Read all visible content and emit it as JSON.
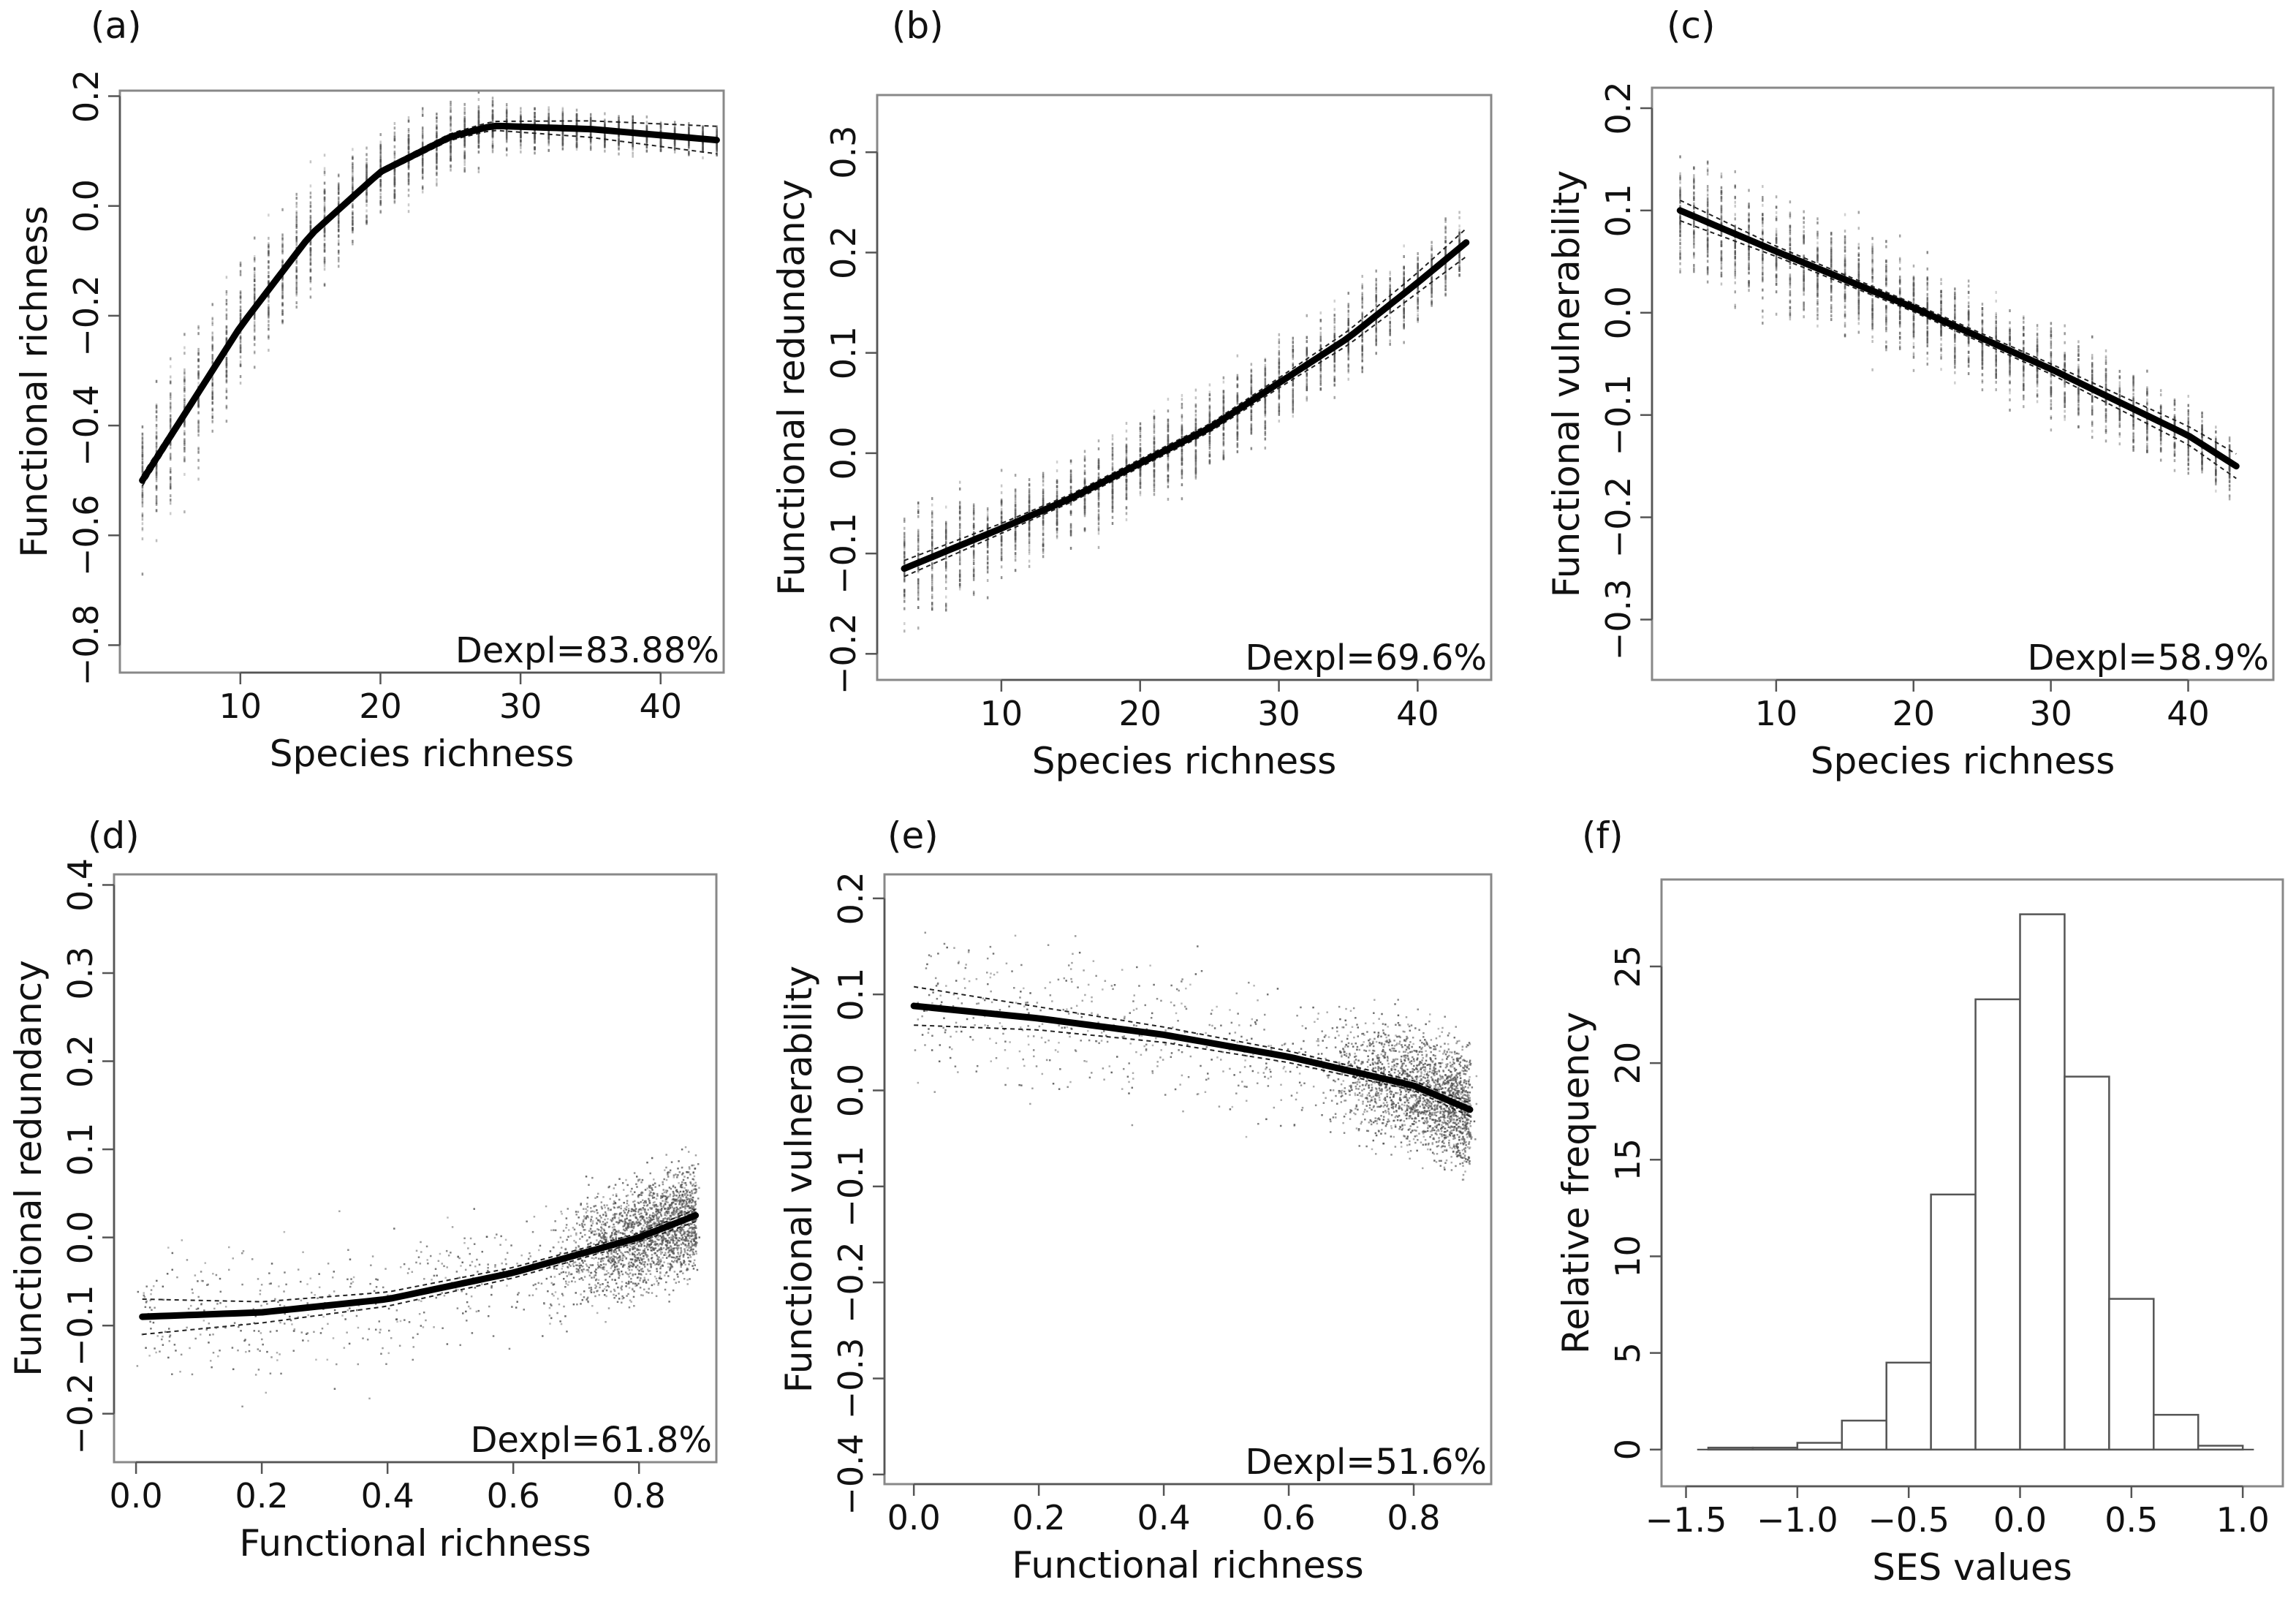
{
  "chart_data": [
    {
      "id": "a",
      "panel_label": "(a)",
      "type": "line",
      "xlabel": "Species richness",
      "ylabel": "Functional richness",
      "xlim": [
        1.4,
        44.5
      ],
      "ylim": [
        -0.85,
        0.21
      ],
      "xticks": [
        10,
        20,
        30,
        40
      ],
      "yticks": [
        -0.8,
        -0.6,
        -0.4,
        -0.2,
        0.0,
        0.2
      ],
      "annotation": "Dexpl=83.88%",
      "fit": {
        "x": [
          3,
          6,
          10,
          15,
          20,
          25,
          28,
          35,
          44
        ],
        "y": [
          -0.5,
          -0.38,
          -0.22,
          -0.053,
          0.062,
          0.126,
          0.146,
          0.14,
          0.12
        ]
      },
      "ci_halfwidth": [
        0.01,
        0.008,
        0.006,
        0.005,
        0.005,
        0.006,
        0.008,
        0.015,
        0.025
      ],
      "scatter": {
        "kind": "columns",
        "x_from": 3,
        "x_to": 44,
        "spread": [
          0.22,
          0.2,
          0.17,
          0.14,
          0.11,
          0.08,
          0.06,
          0.05,
          0.04
        ]
      }
    },
    {
      "id": "b",
      "panel_label": "(b)",
      "type": "line",
      "xlabel": "Species richness",
      "ylabel": "Functional redundancy",
      "xlim": [
        1.05,
        45.3
      ],
      "ylim": [
        -0.226,
        0.357
      ],
      "xticks": [
        10,
        20,
        30,
        40
      ],
      "yticks": [
        -0.2,
        -0.1,
        0.0,
        0.1,
        0.2,
        0.3
      ],
      "annotation": "Dexpl=69.6%",
      "fit": {
        "x": [
          3,
          10,
          15,
          20,
          25,
          30,
          35,
          40,
          43.5
        ],
        "y": [
          -0.115,
          -0.075,
          -0.045,
          -0.01,
          0.025,
          0.07,
          0.115,
          0.17,
          0.21
        ]
      },
      "ci_halfwidth": [
        0.008,
        0.005,
        0.004,
        0.004,
        0.004,
        0.005,
        0.007,
        0.01,
        0.014
      ],
      "scatter": {
        "kind": "columns",
        "x_from": 3,
        "x_to": 43,
        "spread": [
          0.1,
          0.08,
          0.07,
          0.07,
          0.07,
          0.07,
          0.07,
          0.06,
          0.05
        ]
      }
    },
    {
      "id": "c",
      "panel_label": "(c)",
      "type": "line",
      "xlabel": "Species richness",
      "ylabel": "Functional vulnerability",
      "xlim": [
        0.96,
        46.2
      ],
      "ylim": [
        -0.359,
        0.22
      ],
      "xticks": [
        10,
        20,
        30,
        40
      ],
      "yticks": [
        -0.3,
        -0.2,
        -0.1,
        0.0,
        0.1,
        0.2
      ],
      "annotation": "Dexpl=58.9%",
      "fit": {
        "x": [
          3,
          10,
          20,
          30,
          40,
          43.5
        ],
        "y": [
          0.1,
          0.06,
          0.005,
          -0.055,
          -0.12,
          -0.15
        ]
      },
      "ci_halfwidth": [
        0.01,
        0.005,
        0.004,
        0.005,
        0.009,
        0.012
      ],
      "scatter": {
        "kind": "columns",
        "x_from": 3,
        "x_to": 43,
        "spread": [
          0.1,
          0.09,
          0.08,
          0.07,
          0.06,
          0.05
        ]
      }
    },
    {
      "id": "d",
      "panel_label": "(d)",
      "type": "line",
      "xlabel": "Functional richness",
      "ylabel": "Functional redundancy",
      "xlim": [
        -0.035,
        0.923
      ],
      "ylim": [
        -0.255,
        0.412
      ],
      "xticks": [
        0.0,
        0.2,
        0.4,
        0.6,
        0.8
      ],
      "yticks": [
        -0.2,
        -0.1,
        0.0,
        0.1,
        0.2,
        0.3,
        0.4
      ],
      "annotation": "Dexpl=61.8%",
      "fit": {
        "x": [
          0.01,
          0.2,
          0.4,
          0.6,
          0.8,
          0.89
        ],
        "y": [
          -0.09,
          -0.085,
          -0.07,
          -0.04,
          0.0,
          0.025
        ]
      },
      "ci_halfwidth": [
        0.02,
        0.012,
        0.008,
        0.006,
        0.005,
        0.007
      ],
      "scatter": {
        "kind": "cloud",
        "spread": [
          0.09,
          0.09,
          0.08,
          0.07,
          0.07,
          0.07
        ]
      }
    },
    {
      "id": "e",
      "panel_label": "(e)",
      "type": "line",
      "xlabel": "Functional richness",
      "ylabel": "Functional vulnerability",
      "xlim": [
        -0.047,
        0.924
      ],
      "ylim": [
        -0.41,
        0.225
      ],
      "xticks": [
        0.0,
        0.2,
        0.4,
        0.6,
        0.8
      ],
      "yticks": [
        -0.4,
        -0.3,
        -0.2,
        -0.1,
        0.0,
        0.1,
        0.2
      ],
      "annotation": "Dexpl=51.6%",
      "fit": {
        "x": [
          0.0,
          0.2,
          0.4,
          0.6,
          0.8,
          0.89
        ],
        "y": [
          0.088,
          0.075,
          0.058,
          0.035,
          0.005,
          -0.02
        ]
      },
      "ci_halfwidth": [
        0.02,
        0.012,
        0.008,
        0.006,
        0.005,
        0.007
      ],
      "scatter": {
        "kind": "cloud",
        "spread": [
          0.1,
          0.1,
          0.09,
          0.08,
          0.07,
          0.07
        ]
      }
    },
    {
      "id": "f",
      "panel_label": "(f)",
      "type": "bar",
      "xlabel": "SES values",
      "ylabel": "Relative frequency",
      "xlim": [
        -1.61,
        1.18
      ],
      "ylim": [
        -1.9,
        29.5
      ],
      "xticks": [
        -1.5,
        -1.0,
        -0.5,
        0.0,
        0.5,
        1.0
      ],
      "yticks": [
        0,
        5,
        10,
        15,
        20,
        25
      ],
      "bin_edges": [
        -1.4,
        -1.2,
        -1.0,
        -0.8,
        -0.6,
        -0.4,
        -0.2,
        0.0,
        0.2,
        0.4,
        0.6,
        0.8,
        1.0
      ],
      "values": [
        0.1,
        0.1,
        0.35,
        1.5,
        4.5,
        13.2,
        23.3,
        27.7,
        19.3,
        7.8,
        1.8,
        0.2
      ]
    }
  ]
}
